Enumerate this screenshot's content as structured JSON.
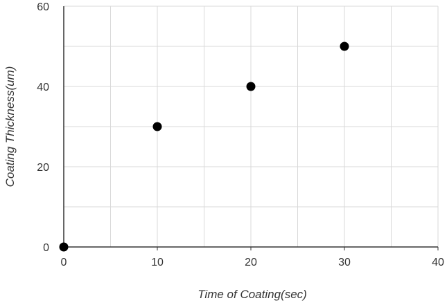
{
  "chart_data": {
    "type": "scatter",
    "title": "",
    "xlabel": "Time of Coating(sec)",
    "ylabel": "Coating Thickness(um)",
    "xlim": [
      0,
      40
    ],
    "ylim": [
      0,
      60
    ],
    "x_ticks": [
      0,
      10,
      20,
      30,
      40
    ],
    "y_ticks": [
      0,
      20,
      40,
      60
    ],
    "x_tick_labels": [
      "0",
      "10",
      "20",
      "30",
      "40"
    ],
    "y_tick_labels": [
      "0",
      "20",
      "40",
      "60"
    ],
    "grid": true,
    "legend": "none",
    "colors": {
      "marker": "#000000",
      "grid": "#d9d9d9",
      "axis": "#333333"
    },
    "series": [
      {
        "x": [
          0,
          10,
          20,
          30
        ],
        "y": [
          0,
          30,
          40,
          50
        ]
      }
    ]
  }
}
